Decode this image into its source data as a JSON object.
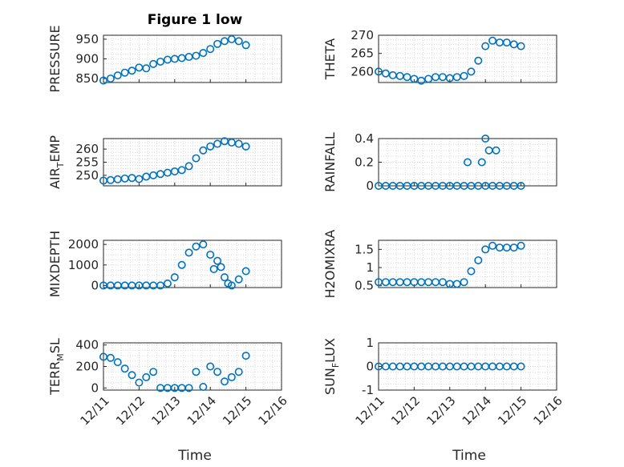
{
  "figure": {
    "title": "Figure 1 low"
  },
  "colors": {
    "marker": "#0072BD",
    "axis": "#262626",
    "grid": "#d9d9d9"
  },
  "x_axis": {
    "label": "Time",
    "ticks": [
      "12/11",
      "12/12",
      "12/13",
      "12/14",
      "12/15",
      "12/16"
    ],
    "range": [
      0,
      5
    ]
  },
  "chart_data": [
    {
      "type": "scatter",
      "ylabel": "PRESSURE",
      "ylim": [
        840,
        960
      ],
      "yticks": [
        "850",
        "900",
        "950"
      ],
      "ytick_values": [
        850,
        900,
        950
      ],
      "x": [
        0.0,
        0.2,
        0.4,
        0.6,
        0.8,
        1.0,
        1.2,
        1.4,
        1.6,
        1.8,
        2.0,
        2.2,
        2.4,
        2.6,
        2.8,
        3.0,
        3.2,
        3.4,
        3.6,
        3.8,
        4.0
      ],
      "y": [
        845,
        850,
        858,
        865,
        870,
        878,
        876,
        887,
        893,
        898,
        900,
        902,
        905,
        908,
        915,
        925,
        938,
        945,
        950,
        945,
        935
      ]
    },
    {
      "type": "scatter",
      "ylabel": "THETA",
      "ylim": [
        257,
        270
      ],
      "yticks": [
        "260",
        "265",
        "270"
      ],
      "ytick_values": [
        260,
        265,
        270
      ],
      "x": [
        0.0,
        0.2,
        0.4,
        0.6,
        0.8,
        1.0,
        1.2,
        1.4,
        1.6,
        1.8,
        2.0,
        2.2,
        2.4,
        2.6,
        2.8,
        3.0,
        3.2,
        3.4,
        3.6,
        3.8,
        4.0
      ],
      "y": [
        260,
        259.5,
        259,
        258.8,
        258.5,
        258,
        257.5,
        258,
        258.5,
        258.5,
        258.2,
        258.5,
        258.8,
        260,
        263,
        267,
        268.5,
        268,
        268,
        267.5,
        267
      ]
    },
    {
      "type": "scatter",
      "ylabel": "AIR_TEMP",
      "ylim": [
        246,
        264
      ],
      "yticks": [
        "250",
        "255",
        "260"
      ],
      "ytick_values": [
        250,
        255,
        260
      ],
      "x": [
        0.0,
        0.2,
        0.4,
        0.6,
        0.8,
        1.0,
        1.2,
        1.4,
        1.6,
        1.8,
        2.0,
        2.2,
        2.4,
        2.6,
        2.8,
        3.0,
        3.2,
        3.4,
        3.6,
        3.8,
        4.0
      ],
      "y": [
        248,
        248.2,
        248.5,
        248.8,
        249,
        248.6,
        249.5,
        250,
        250.5,
        251,
        251.5,
        252,
        253.5,
        256.5,
        259.5,
        261,
        262,
        263,
        262.5,
        262,
        261
      ]
    },
    {
      "type": "scatter",
      "ylabel": "RAINFALL",
      "ylim": [
        0,
        0.4
      ],
      "yticks": [
        "0",
        "0.2",
        "0.4"
      ],
      "ytick_values": [
        0,
        0.2,
        0.4
      ],
      "x": [
        0.0,
        0.2,
        0.4,
        0.6,
        0.8,
        1.0,
        1.2,
        1.4,
        1.6,
        1.8,
        2.0,
        2.2,
        2.4,
        2.6,
        2.8,
        3.0,
        3.2,
        3.4,
        3.6,
        3.8,
        4.0,
        2.5,
        2.9,
        3.0,
        3.1,
        3.3
      ],
      "y": [
        0,
        0,
        0,
        0,
        0,
        0,
        0,
        0,
        0,
        0,
        0,
        0,
        0,
        0,
        0,
        0,
        0,
        0,
        0,
        0,
        0,
        0.2,
        0.2,
        0.4,
        0.3,
        0.3
      ]
    },
    {
      "type": "scatter",
      "ylabel": "MIXDEPTH",
      "ylim": [
        -100,
        2200
      ],
      "yticks": [
        "0",
        "1000",
        "2000"
      ],
      "ytick_values": [
        0,
        1000,
        2000
      ],
      "x": [
        0.0,
        0.2,
        0.4,
        0.6,
        0.8,
        1.0,
        1.2,
        1.4,
        1.6,
        1.8,
        2.0,
        2.2,
        2.4,
        2.6,
        2.8,
        3.0,
        3.1,
        3.2,
        3.3,
        3.4,
        3.5,
        3.6,
        3.8,
        4.0
      ],
      "y": [
        0,
        0,
        0,
        0,
        0,
        0,
        0,
        0,
        0,
        100,
        400,
        1000,
        1600,
        1900,
        2000,
        1500,
        800,
        1200,
        900,
        400,
        100,
        0,
        300,
        700
      ]
    },
    {
      "type": "scatter",
      "ylabel": "H2OMIXRA",
      "ylim": [
        0.45,
        1.75
      ],
      "yticks": [
        "0.5",
        "1",
        "1.5"
      ],
      "ytick_values": [
        0.5,
        1,
        1.5
      ],
      "x": [
        0.0,
        0.2,
        0.4,
        0.6,
        0.8,
        1.0,
        1.2,
        1.4,
        1.6,
        1.8,
        2.0,
        2.2,
        2.4,
        2.6,
        2.8,
        3.0,
        3.2,
        3.4,
        3.6,
        3.8,
        4.0
      ],
      "y": [
        0.6,
        0.6,
        0.6,
        0.6,
        0.6,
        0.6,
        0.6,
        0.6,
        0.6,
        0.6,
        0.55,
        0.55,
        0.6,
        0.9,
        1.2,
        1.5,
        1.6,
        1.55,
        1.55,
        1.55,
        1.6
      ]
    },
    {
      "type": "scatter",
      "ylabel": "TERR_MSL",
      "ylim": [
        -20,
        420
      ],
      "yticks": [
        "0",
        "200",
        "400"
      ],
      "ytick_values": [
        0,
        200,
        400
      ],
      "x": [
        0.0,
        0.2,
        0.4,
        0.6,
        0.8,
        1.0,
        1.2,
        1.4,
        1.6,
        1.8,
        2.0,
        2.2,
        2.4,
        2.6,
        2.8,
        3.0,
        3.2,
        3.4,
        3.6,
        3.8,
        4.0
      ],
      "y": [
        290,
        280,
        240,
        180,
        120,
        50,
        100,
        150,
        0,
        0,
        0,
        0,
        0,
        150,
        10,
        200,
        150,
        60,
        100,
        150,
        300
      ]
    },
    {
      "type": "scatter",
      "ylabel": "SUN_FLUX",
      "ylim": [
        -1,
        1
      ],
      "yticks": [
        "-1",
        "0",
        "1"
      ],
      "ytick_values": [
        -1,
        0,
        1
      ],
      "x": [
        0.0,
        0.2,
        0.4,
        0.6,
        0.8,
        1.0,
        1.2,
        1.4,
        1.6,
        1.8,
        2.0,
        2.2,
        2.4,
        2.6,
        2.8,
        3.0,
        3.2,
        3.4,
        3.6,
        3.8,
        4.0
      ],
      "y": [
        0,
        0,
        0,
        0,
        0,
        0,
        0,
        0,
        0,
        0,
        0,
        0,
        0,
        0,
        0,
        0,
        0,
        0,
        0,
        0,
        0
      ]
    }
  ]
}
